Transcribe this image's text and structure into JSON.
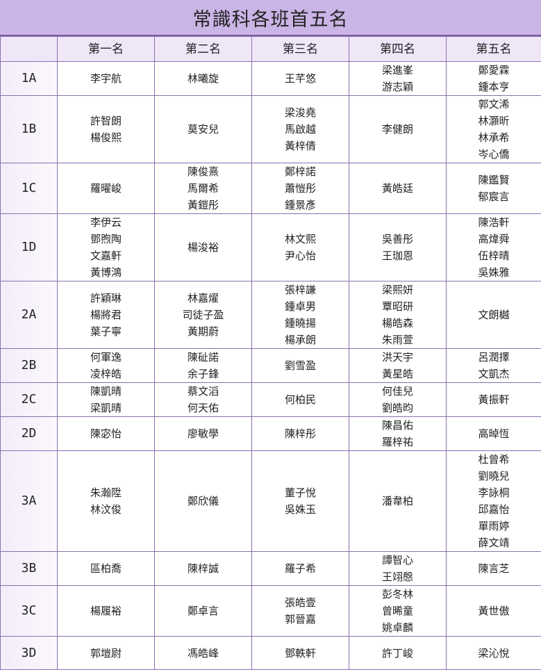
{
  "title": "常識科各班首五名",
  "table": {
    "header": [
      "第一名",
      "第二名",
      "第三名",
      "第四名",
      "第五名"
    ],
    "rows": [
      {
        "class": "1A",
        "cells": [
          [
            "李宇航"
          ],
          [
            "林曦旋"
          ],
          [
            "王芊悠"
          ],
          [
            "梁進峯",
            "游志穎"
          ],
          [
            "鄭愛霖",
            "鍾本亨"
          ]
        ]
      },
      {
        "class": "1B",
        "cells": [
          [
            "許智朗",
            "楊俊熙"
          ],
          [
            "莫安兒"
          ],
          [
            "梁浚堯",
            "馬啟越",
            "黃梓倩"
          ],
          [
            "李健朗"
          ],
          [
            "郭文浠",
            "林灝昕",
            "林承希",
            "岑心僑"
          ]
        ]
      },
      {
        "class": "1C",
        "cells": [
          [
            "羅曜峻"
          ],
          [
            "陳俊熹",
            "馬爾希",
            "黃鎧彤"
          ],
          [
            "鄭梓諾",
            "蕭愷彤",
            "鍾景彥"
          ],
          [
            "黃皓廷"
          ],
          [
            "陳鑑賢",
            "郁宸言"
          ]
        ]
      },
      {
        "class": "1D",
        "cells": [
          [
            "李伊云",
            "鄧煦陶",
            "文嘉軒",
            "黃博鴻"
          ],
          [
            "楊浚裕"
          ],
          [
            "林文熙",
            "尹心怡"
          ],
          [
            "吳善彤",
            "王珈恩"
          ],
          [
            "陳浩軒",
            "高煒舜",
            "伍梓晴",
            "吳姝雅"
          ]
        ]
      },
      {
        "class": "2A",
        "cells": [
          [
            "許穎琳",
            "楊將君",
            "葉子寧"
          ],
          [
            "林嘉燿",
            "司徒子盈",
            "黃期蔚"
          ],
          [
            "張梓謙",
            "鍾卓男",
            "鍾曉揚",
            "楊承朗"
          ],
          [
            "梁熙妍",
            "覃昭研",
            "楊皓森",
            "朱雨萱"
          ],
          [
            "文朗樾"
          ]
        ]
      },
      {
        "class": "2B",
        "cells": [
          [
            "何軍逸",
            "凌梓皓"
          ],
          [
            "陳砋諾",
            "余子鋒"
          ],
          [
            "劉雪盈"
          ],
          [
            "洪天宇",
            "黃星皓"
          ],
          [
            "呂潤擇",
            "文凱杰"
          ]
        ]
      },
      {
        "class": "2C",
        "cells": [
          [
            "陳凱晴",
            "梁凱晴"
          ],
          [
            "蔡文滔",
            "何天佑"
          ],
          [
            "何柏民"
          ],
          [
            "何佳兒",
            "劉皓昀"
          ],
          [
            "黃振軒"
          ]
        ]
      },
      {
        "class": "2D",
        "cells": [
          [
            "陳宓怡"
          ],
          [
            "廖敏學"
          ],
          [
            "陳梓彤"
          ],
          [
            "陳昌佑",
            "羅梓祐"
          ],
          [
            "高晫恆"
          ]
        ]
      },
      {
        "class": "3A",
        "cells": [
          [
            "朱瀚陞",
            "林汶俊"
          ],
          [
            "鄭欣儀"
          ],
          [
            "董子悅",
            "吳姝玉"
          ],
          [
            "潘韋柏"
          ],
          [
            "杜曾希",
            "劉曉兒",
            "李詠桐",
            "邱嘉怡",
            "單雨婷",
            "薛文靖"
          ]
        ]
      },
      {
        "class": "3B",
        "cells": [
          [
            "區柏喬"
          ],
          [
            "陳梓誠"
          ],
          [
            "羅子希"
          ],
          [
            "譚智心",
            "王翊慇"
          ],
          [
            "陳言芝"
          ]
        ]
      },
      {
        "class": "3C",
        "cells": [
          [
            "楊履裕"
          ],
          [
            "鄭卓言"
          ],
          [
            "張皓壹",
            "郭晉嘉"
          ],
          [
            "彭冬林",
            "曾晞童",
            "姚卓麟"
          ],
          [
            "黃世傲"
          ]
        ]
      },
      {
        "class": "3D",
        "cells": [
          [
            "郭塏尉"
          ],
          [
            "馮皓峰"
          ],
          [
            "鄧軼軒"
          ],
          [
            "許丁峻"
          ],
          [
            "梁沁悅"
          ]
        ]
      }
    ]
  }
}
